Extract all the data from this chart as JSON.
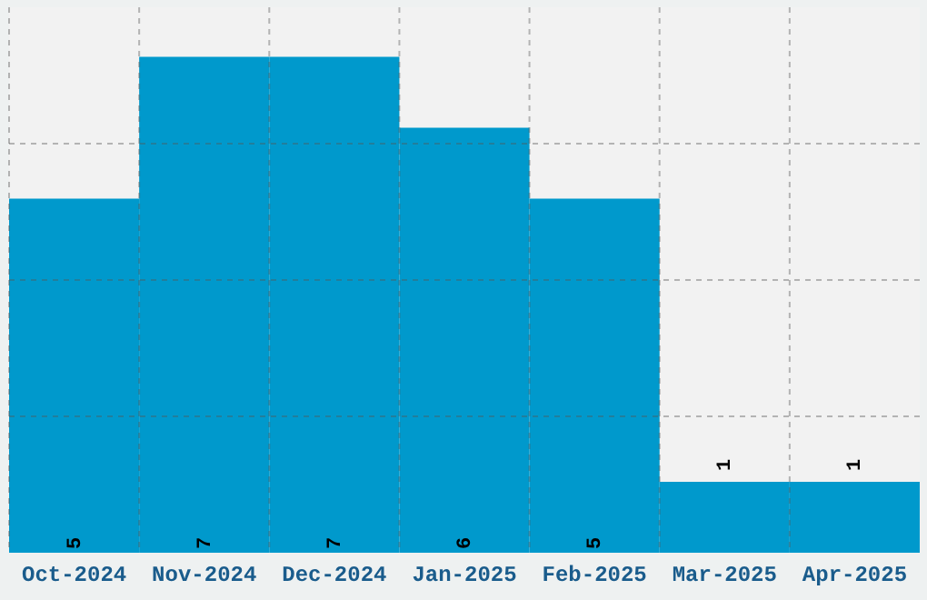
{
  "chart_data": {
    "type": "bar",
    "categories": [
      "Oct-2024",
      "Nov-2024",
      "Dec-2024",
      "Jan-2025",
      "Feb-2025",
      "Mar-2025",
      "Apr-2025"
    ],
    "values": [
      5,
      7,
      7,
      6,
      5,
      1,
      1
    ],
    "color": "#0099cc",
    "ylim": [
      0,
      7.7
    ],
    "yticks": [
      {
        "value": 1.925,
        "label": null
      },
      {
        "value": 3.85,
        "label": null
      },
      {
        "value": 5.775,
        "label": null
      }
    ],
    "grid": true,
    "data_labels": true,
    "tick_labels": "x"
  }
}
